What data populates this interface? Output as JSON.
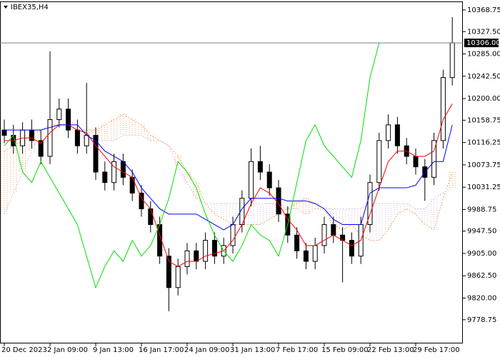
{
  "chart_data": {
    "type": "candlestick",
    "title": "IBEX35,H4",
    "categories": [
      "20 Dec 2023",
      null,
      null,
      null,
      null,
      "2 Jan 09:00",
      null,
      null,
      null,
      null,
      "9 Jan 13:00",
      null,
      null,
      null,
      null,
      "16 Jan 17:00",
      null,
      null,
      null,
      null,
      "24 Jan 09:00",
      null,
      null,
      null,
      null,
      "31 Jan 13:00",
      null,
      null,
      null,
      null,
      "7 Feb 17:00",
      null,
      null,
      null,
      null,
      "15 Feb 09:00",
      null,
      null,
      null,
      null,
      "22 Feb 13:00",
      null,
      null,
      null,
      null,
      "29 Feb 17:00",
      null,
      null,
      null,
      null
    ],
    "open": [
      10140,
      10130,
      10110,
      10140,
      10120,
      10090,
      10160,
      10180,
      10140,
      10110,
      10130,
      10060,
      10040,
      10080,
      10050,
      10020,
      9990,
      9960,
      9900,
      9840,
      9880,
      9910,
      9890,
      9930,
      9900,
      9920,
      9960,
      10010,
      10080,
      10060,
      10030,
      9980,
      9940,
      9910,
      9890,
      9920,
      9960,
      9940,
      9930,
      9900,
      9960,
      10040,
      10120,
      10150,
      10110,
      10090,
      10070,
      10050,
      10120,
      10240
    ],
    "high": [
      10160,
      10150,
      10155,
      10160,
      10140,
      10290,
      10200,
      10200,
      10160,
      10230,
      10145,
      10080,
      10095,
      10095,
      10065,
      10035,
      10005,
      9975,
      9915,
      9895,
      9925,
      9925,
      9945,
      9945,
      9935,
      9975,
      10025,
      10105,
      10110,
      10075,
      10045,
      9995,
      9955,
      9925,
      9935,
      9975,
      9975,
      9955,
      9945,
      9975,
      10055,
      10135,
      10170,
      10165,
      10125,
      10105,
      10085,
      10135,
      10255,
      10355
    ],
    "low": [
      10115,
      10095,
      10095,
      10105,
      10075,
      10075,
      10145,
      10125,
      10095,
      10095,
      10045,
      10025,
      10025,
      10035,
      10005,
      9975,
      9945,
      9885,
      9795,
      9825,
      9865,
      9875,
      9875,
      9885,
      9885,
      9905,
      9945,
      9995,
      10045,
      10015,
      9965,
      9925,
      9895,
      9875,
      9875,
      9905,
      9925,
      9850,
      9885,
      9885,
      9945,
      10025,
      10105,
      10095,
      10075,
      10055,
      10005,
      10035,
      10105,
      10225
    ],
    "close": [
      10130,
      10110,
      10140,
      10120,
      10090,
      10160,
      10180,
      10140,
      10110,
      10130,
      10060,
      10040,
      10080,
      10050,
      10020,
      9990,
      9960,
      9900,
      9840,
      9880,
      9910,
      9890,
      9930,
      9900,
      9920,
      9960,
      10010,
      10080,
      10060,
      10030,
      9980,
      9940,
      9910,
      9890,
      9920,
      9960,
      9940,
      9930,
      9900,
      9960,
      10040,
      10120,
      10150,
      10110,
      10090,
      10070,
      10050,
      10120,
      10240,
      10306
    ],
    "lines": [
      {
        "color": "#ff0000",
        "values": [
          10120,
          10120,
          10125,
          10125,
          10115,
          10135,
          10150,
          10150,
          10140,
          10135,
          10110,
          10090,
          10070,
          10060,
          10050,
          10010,
          9990,
          9940,
          9890,
          9880,
          9890,
          9890,
          9900,
          9905,
          9910,
          9930,
          9960,
          10000,
          10030,
          10020,
          10000,
          9970,
          9950,
          9920,
          9920,
          9930,
          9940,
          9930,
          9920,
          9930,
          9980,
          10030,
          10080,
          10100,
          10100,
          10090,
          10090,
          10100,
          10160,
          10190
        ]
      },
      {
        "color": "#0000ff",
        "values": [
          10140,
          10140,
          10140,
          10140,
          10140,
          10145,
          10150,
          10150,
          10150,
          10130,
          10120,
          10100,
          10090,
          10080,
          10060,
          10030,
          10010,
          9990,
          9980,
          9980,
          9980,
          9980,
          9970,
          9960,
          9950,
          9960,
          9990,
          10010,
          10010,
          10010,
          10010,
          10005,
          10005,
          10005,
          10000,
          9990,
          9970,
          9960,
          9960,
          9960,
          10020,
          10030,
          10030,
          10030,
          10030,
          10035,
          10060,
          10080,
          10080,
          10150
        ]
      },
      {
        "color": "#00e000",
        "values": [
          10110,
          10130,
          10060,
          10040,
          10080,
          10050,
          10020,
          9990,
          9960,
          9900,
          9840,
          9880,
          9910,
          9890,
          9930,
          9900,
          9920,
          9960,
          10010,
          10080,
          10060,
          10030,
          9980,
          9940,
          9910,
          9890,
          9920,
          9960,
          9940,
          9930,
          9900,
          9960,
          10040,
          10120,
          10150,
          10110,
          10090,
          10070,
          10050,
          10120,
          10240,
          10306,
          null,
          null,
          null,
          null,
          null,
          null,
          null,
          null
        ]
      }
    ],
    "cloud": {
      "color_a": "#f4a460",
      "color_b": "#d8bfd8",
      "span_a": [
        10100,
        10110,
        10120,
        10130,
        10140,
        10150,
        10150,
        10150,
        10140,
        10140,
        10140,
        10150,
        10160,
        10170,
        10160,
        10150,
        10130,
        10120,
        10110,
        10090,
        10060,
        10040,
        10000,
        9980,
        9970,
        9960,
        9960,
        9960,
        9960,
        9970,
        9980,
        9990,
        10000,
        10010,
        10000,
        9990,
        9960,
        9950,
        9960,
        9940,
        9930,
        9930,
        9950,
        9980,
        9990,
        9980,
        9960,
        9950,
        10010,
        10060
      ],
      "span_b": [
        9980,
        10020,
        10060,
        10100,
        10140,
        10150,
        10150,
        10150,
        10140,
        10120,
        10120,
        10120,
        10120,
        10130,
        10130,
        10130,
        10120,
        10120,
        10110,
        10070,
        10040,
        10010,
        10000,
        10000,
        10000,
        10000,
        10000,
        10000,
        10000,
        10000,
        10000,
        9990,
        9990,
        9980,
        9990,
        9990,
        9990,
        9990,
        9990,
        9990,
        10000,
        10000,
        10000,
        10000,
        10000,
        9990,
        9990,
        10010,
        10020,
        10030
      ]
    },
    "current_price": {
      "value": 10306,
      "label": "10306.00"
    },
    "ylim": [
      9735,
      10385
    ],
    "yticks": [
      {
        "value": 10368.75,
        "label": "10368.75"
      },
      {
        "value": 10327.5,
        "label": "10327.50"
      },
      {
        "value": 10285,
        "label": "10285.00"
      },
      {
        "value": 10242.5,
        "label": "10242.50"
      },
      {
        "value": 10200,
        "label": "10200.00"
      },
      {
        "value": 10158.75,
        "label": "10158.75"
      },
      {
        "value": 10116.25,
        "label": "10116.25"
      },
      {
        "value": 10073.75,
        "label": "10073.75"
      },
      {
        "value": 10031.25,
        "label": "10031.25"
      },
      {
        "value": 9988.75,
        "label": "9988.75"
      },
      {
        "value": 9947.5,
        "label": "9947.50"
      },
      {
        "value": 9905,
        "label": "9905.00"
      },
      {
        "value": 9862.5,
        "label": "9862.50"
      },
      {
        "value": 9820,
        "label": "9820.00"
      },
      {
        "value": 9778.75,
        "label": "9778.75"
      }
    ]
  }
}
